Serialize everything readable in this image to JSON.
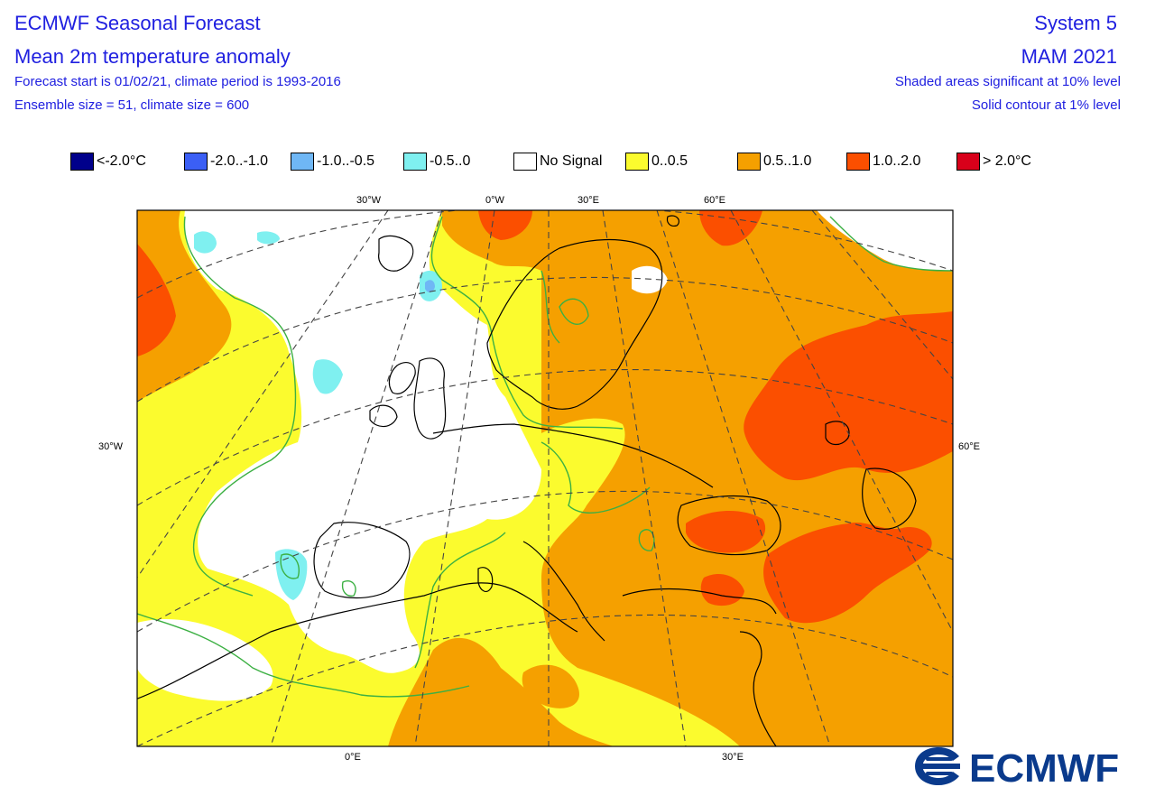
{
  "header": {
    "title": "ECMWF Seasonal Forecast",
    "variable": "Mean 2m temperature anomaly",
    "start_info": "Forecast start is 01/02/21, climate period is 1993-2016",
    "ensemble_info": "Ensemble size = 51, climate size = 600",
    "system": "System 5",
    "season": "MAM 2021",
    "significance_note": "Shaded areas significant at 10% level",
    "contour_note": "Solid contour at 1% level"
  },
  "legend": [
    {
      "label": "<-2.0°C",
      "color": "#00008b"
    },
    {
      "label": "-2.0..-1.0",
      "color": "#3b5ff5"
    },
    {
      "label": "-1.0..-0.5",
      "color": "#6fb7f5"
    },
    {
      "label": "-0.5..0",
      "color": "#7ff0f0"
    },
    {
      "label": "No Signal",
      "color": "#ffffff"
    },
    {
      "label": "0..0.5",
      "color": "#fbfb2e"
    },
    {
      "label": "0.5..1.0",
      "color": "#f5a000"
    },
    {
      "label": "1.0..2.0",
      "color": "#fb4f00"
    },
    {
      "label": "> 2.0°C",
      "color": "#d8001a"
    }
  ],
  "axis_labels": {
    "top": [
      "30°W",
      "0°W",
      "30°E",
      "60°E"
    ],
    "bottom": [
      "0°E",
      "30°E"
    ],
    "left": "30°W",
    "right": "60°E"
  },
  "colors": {
    "yellow": "#fbfb2e",
    "orange": "#f5a000",
    "red_orange": "#fb4f00",
    "cyan": "#7ff0f0",
    "light_blue": "#6fb7f5",
    "contour": "#3cb043",
    "coast": "#000000",
    "title_blue": "#2020e0"
  },
  "logo_text": "ECMWF"
}
